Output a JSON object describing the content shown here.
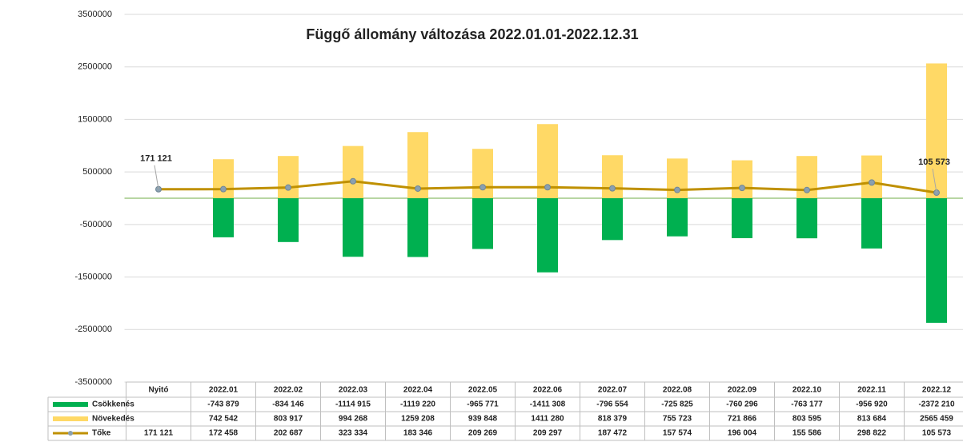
{
  "chart_data": {
    "type": "bar",
    "title": "Függő állomány változása 2022.01.01-2022.12.31",
    "categories": [
      "Nyitó",
      "2022.01",
      "2022.02",
      "2022.03",
      "2022.04",
      "2022.05",
      "2022.06",
      "2022.07",
      "2022.08",
      "2022.09",
      "2022.10",
      "2022.11",
      "2022.12"
    ],
    "ylim": [
      -3500000,
      3500000
    ],
    "yticks": [
      3500000,
      2500000,
      1500000,
      500000,
      -500000,
      -1500000,
      -2500000,
      -3500000
    ],
    "grid": true,
    "series": [
      {
        "name": "Csökkenés",
        "type": "bar",
        "color": "#00b050",
        "values": [
          null,
          -743879,
          -834146,
          -1114915,
          -1119220,
          -965771,
          -1411308,
          -796554,
          -725825,
          -760296,
          -763177,
          -956920,
          -2372210
        ],
        "value_labels": [
          null,
          "-743 879",
          "-834 146",
          "-1114 915",
          "-1119 220",
          "-965 771",
          "-1411 308",
          "-796 554",
          "-725 825",
          "-760 296",
          "-763 177",
          "-956 920",
          "-2372 210"
        ]
      },
      {
        "name": "Növekedés",
        "type": "bar",
        "color": "#ffd966",
        "values": [
          null,
          742542,
          803917,
          994268,
          1259208,
          939848,
          1411280,
          818379,
          755723,
          721866,
          803595,
          813684,
          2565459
        ],
        "value_labels": [
          null,
          "742 542",
          "803 917",
          "994 268",
          "1259 208",
          "939 848",
          "1411 280",
          "818 379",
          "755 723",
          "721 866",
          "803 595",
          "813 684",
          "2565 459"
        ]
      },
      {
        "name": "Tőke",
        "type": "line",
        "color": "#bf9000",
        "values": [
          171121,
          172458,
          202687,
          323334,
          183346,
          209269,
          209297,
          187472,
          157574,
          196004,
          155586,
          298822,
          105573
        ],
        "value_labels": [
          "171 121",
          "172 458",
          "202 687",
          "323 334",
          "183 346",
          "209 269",
          "209 297",
          "187 472",
          "157 574",
          "196 004",
          "155 586",
          "298 822",
          "105 573"
        ]
      }
    ]
  }
}
